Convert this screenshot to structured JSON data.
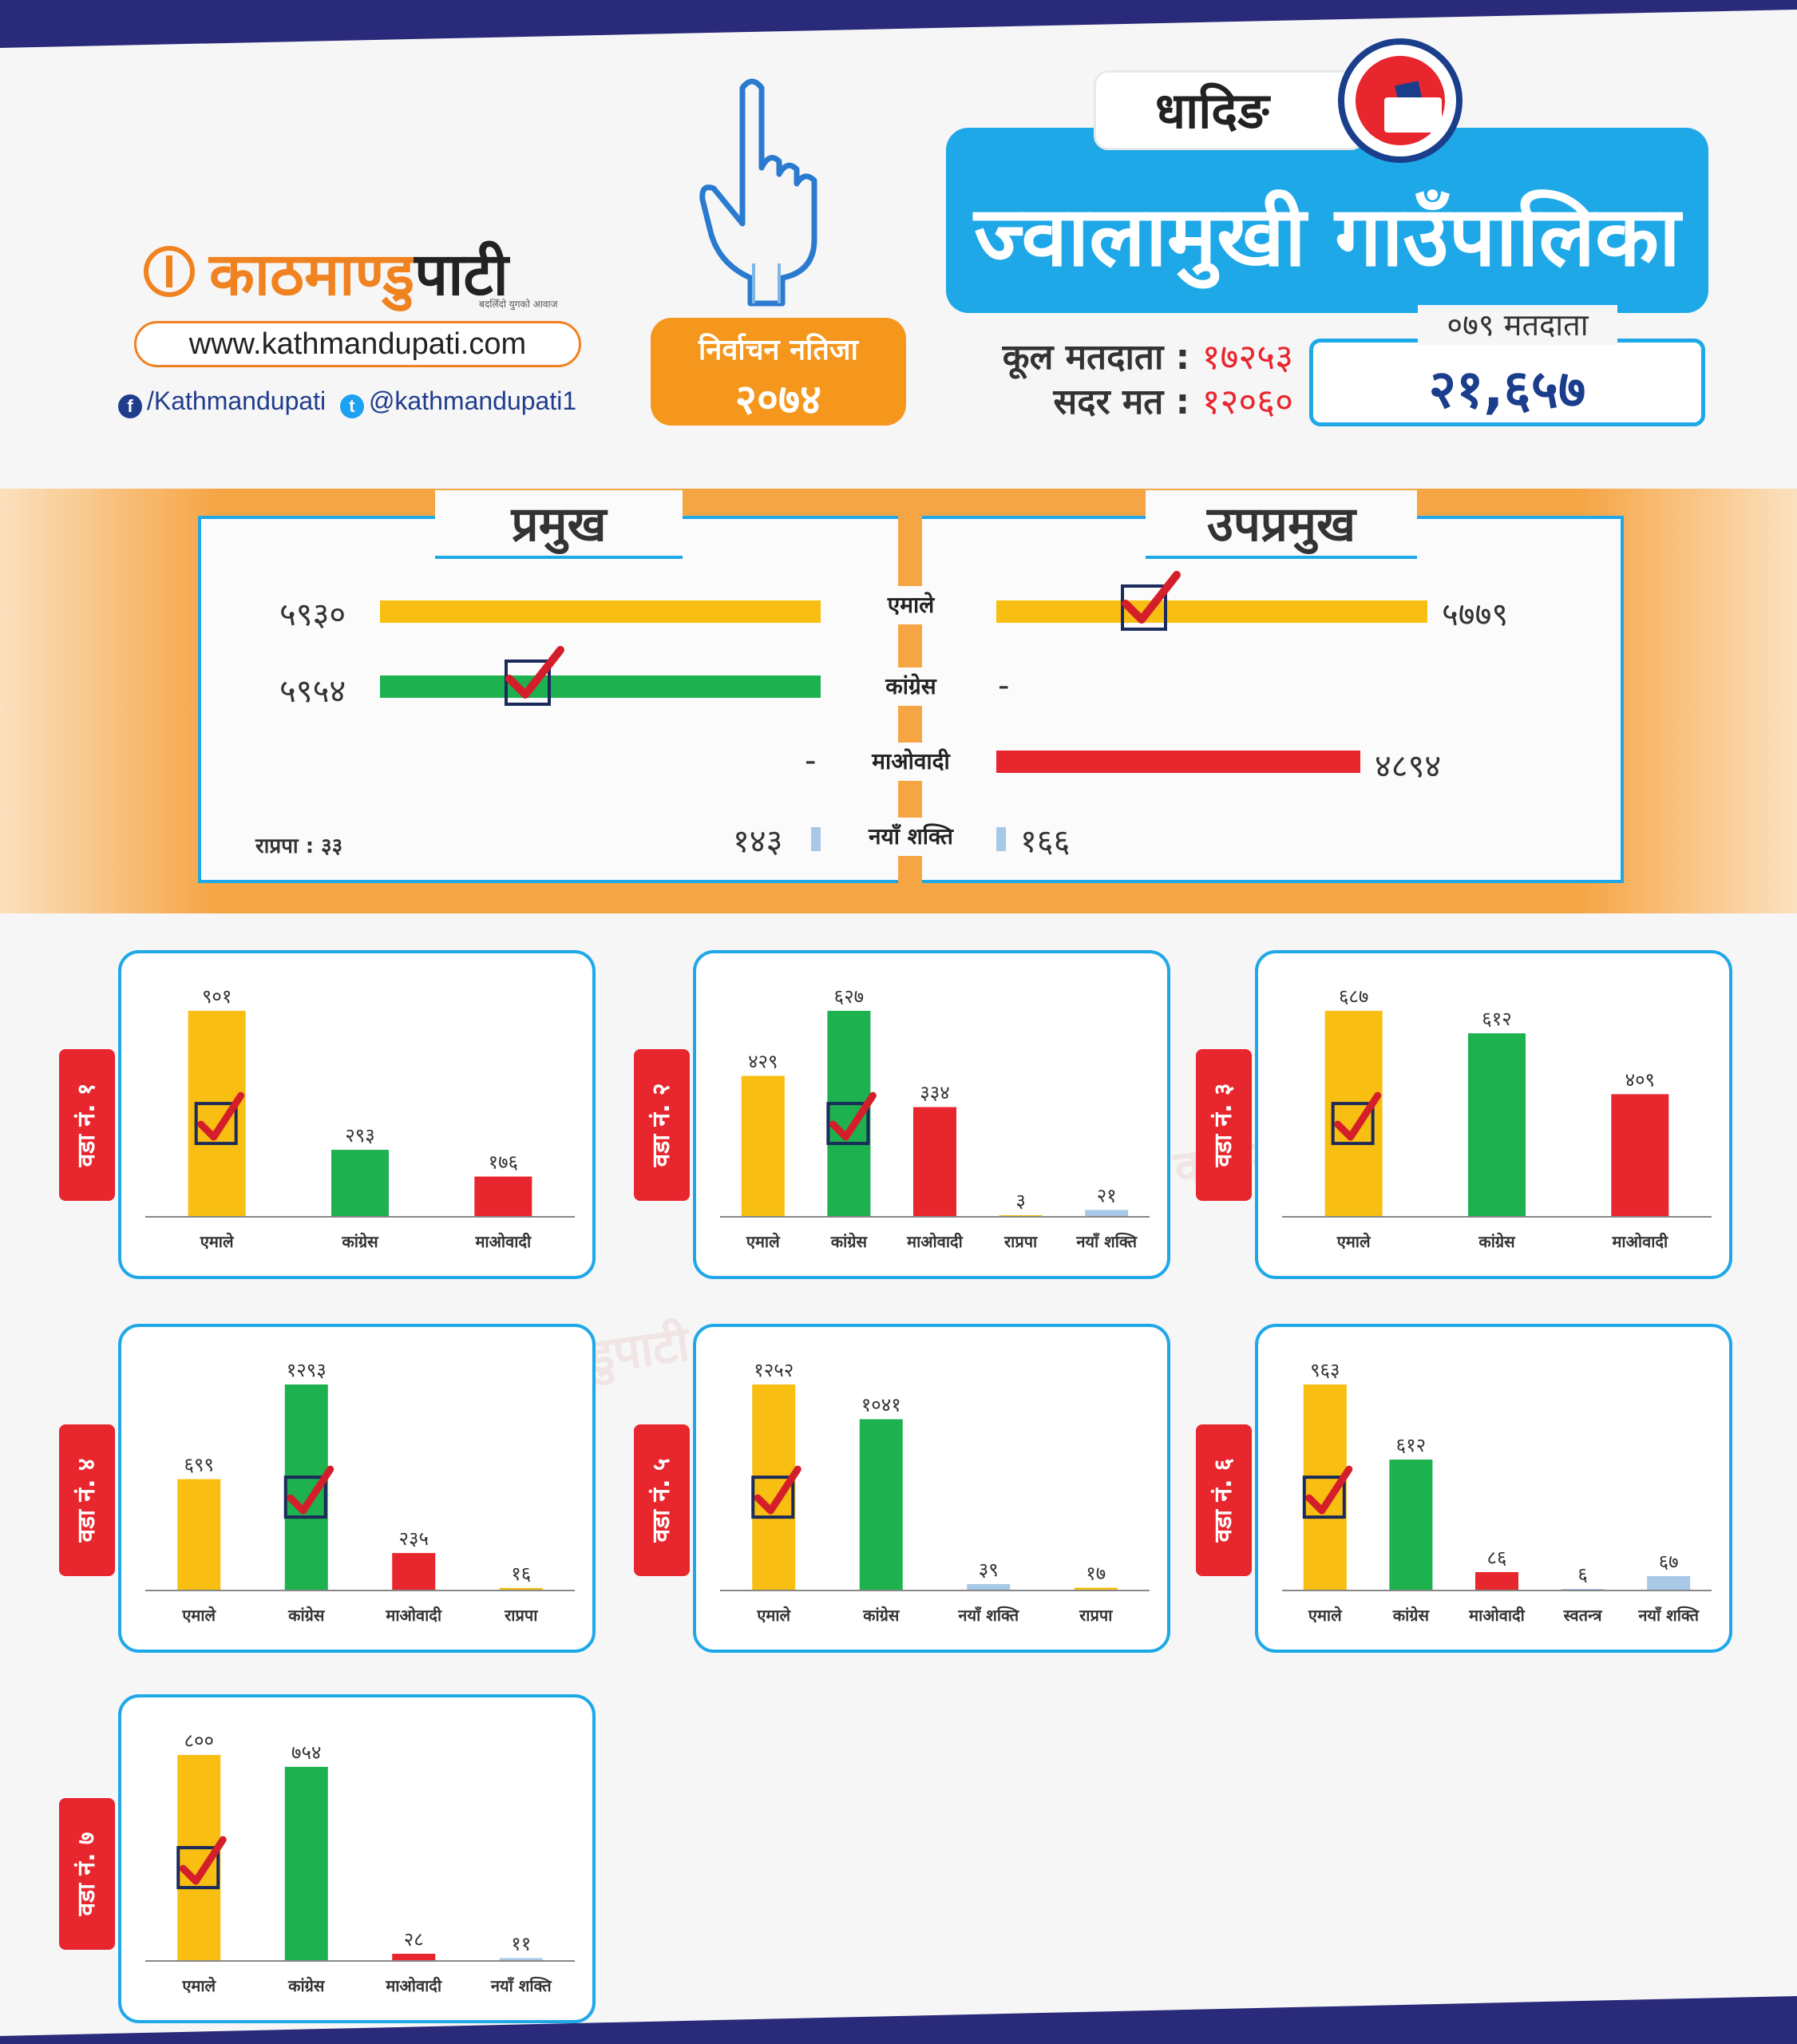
{
  "colors": {
    "uml": "#f9be12",
    "congress": "#1db14f",
    "maoist": "#e8262d",
    "newforce": "#a8c8e8",
    "rpp": "#f9be12",
    "independent": "#a8c8e8",
    "accent": "#1fa8e8",
    "navy": "#2a2a7a"
  },
  "header": {
    "logo_text_a": "काठमाण्डु",
    "logo_text_b": "पाटी",
    "logo_tagline": "बदलिँदो युगको आवाज",
    "website": "www.kathmandupati.com",
    "facebook": "/Kathmandupati",
    "twitter": "@kathmandupati1",
    "result_label": "निर्वाचन नतिजा",
    "result_year": "२०७४",
    "district": "धादिङ",
    "municipality": "ज्वालामुखी गाउँपालिका",
    "total_voters_label": "कूल मतदाता :",
    "total_voters": "१७२५३",
    "valid_votes_label": "सदर मत :",
    "valid_votes": "१२०६०",
    "voters_079_label": "०७९ मतदाता",
    "voters_079": "२१,६५७"
  },
  "leaders": {
    "chief_title": "प्रमुख",
    "deputy_title": "उपप्रमुख",
    "parties": [
      "एमाले",
      "कांग्रेस",
      "माओवादी",
      "नयाँ शक्ति"
    ],
    "chief_values": [
      "५९३०",
      "५९५४",
      "-",
      "१४३"
    ],
    "deputy_values": [
      "५७७९",
      "-",
      "४८९४",
      "१६६"
    ],
    "note": "राप्रपा : ३३"
  },
  "chart_data": [
    {
      "type": "bar",
      "title": "वडा नं. १",
      "categories": [
        "एमाले",
        "कांग्रेस",
        "माओवादी"
      ],
      "values": [
        901,
        293,
        176
      ],
      "labels": [
        "९०१",
        "२९३",
        "१७६"
      ],
      "colors": [
        "uml",
        "congress",
        "maoist"
      ],
      "winner": 0
    },
    {
      "type": "bar",
      "title": "वडा नं. २",
      "categories": [
        "एमाले",
        "कांग्रेस",
        "माओवादी",
        "राप्रपा",
        "नयाँ शक्ति"
      ],
      "values": [
        429,
        627,
        334,
        3,
        21
      ],
      "labels": [
        "४२९",
        "६२७",
        "३३४",
        "३",
        "२१"
      ],
      "colors": [
        "uml",
        "congress",
        "maoist",
        "rpp",
        "newforce"
      ],
      "winner": 1
    },
    {
      "type": "bar",
      "title": "वडा नं. ३",
      "categories": [
        "एमाले",
        "कांग्रेस",
        "माओवादी"
      ],
      "values": [
        687,
        612,
        409
      ],
      "labels": [
        "६८७",
        "६१२",
        "४०९"
      ],
      "colors": [
        "uml",
        "congress",
        "maoist"
      ],
      "winner": 0
    },
    {
      "type": "bar",
      "title": "वडा नं. ४",
      "categories": [
        "एमाले",
        "कांग्रेस",
        "माओवादी",
        "राप्रपा"
      ],
      "values": [
        699,
        1293,
        235,
        16
      ],
      "labels": [
        "६९९",
        "१२९३",
        "२३५",
        "१६"
      ],
      "colors": [
        "uml",
        "congress",
        "maoist",
        "rpp"
      ],
      "winner": 1
    },
    {
      "type": "bar",
      "title": "वडा नं. ५",
      "categories": [
        "एमाले",
        "कांग्रेस",
        "नयाँ शक्ति",
        "राप्रपा"
      ],
      "values": [
        1252,
        1041,
        39,
        17
      ],
      "labels": [
        "१२५२",
        "१०४१",
        "३९",
        "१७"
      ],
      "colors": [
        "uml",
        "congress",
        "newforce",
        "rpp"
      ],
      "winner": 0
    },
    {
      "type": "bar",
      "title": "वडा नं. ६",
      "categories": [
        "एमाले",
        "कांग्रेस",
        "माओवादी",
        "स्वतन्त्र",
        "नयाँ शक्ति"
      ],
      "values": [
        963,
        612,
        86,
        6,
        67
      ],
      "labels": [
        "९६३",
        "६१२",
        "८६",
        "६",
        "६७"
      ],
      "colors": [
        "uml",
        "congress",
        "maoist",
        "independent",
        "newforce"
      ],
      "winner": 0
    },
    {
      "type": "bar",
      "title": "वडा नं. ७",
      "categories": [
        "एमाले",
        "कांग्रेस",
        "माओवादी",
        "नयाँ शक्ति"
      ],
      "values": [
        800,
        754,
        28,
        11
      ],
      "labels": [
        "८००",
        "७५४",
        "२८",
        "११"
      ],
      "colors": [
        "uml",
        "congress",
        "maoist",
        "newforce"
      ],
      "winner": 0
    }
  ]
}
